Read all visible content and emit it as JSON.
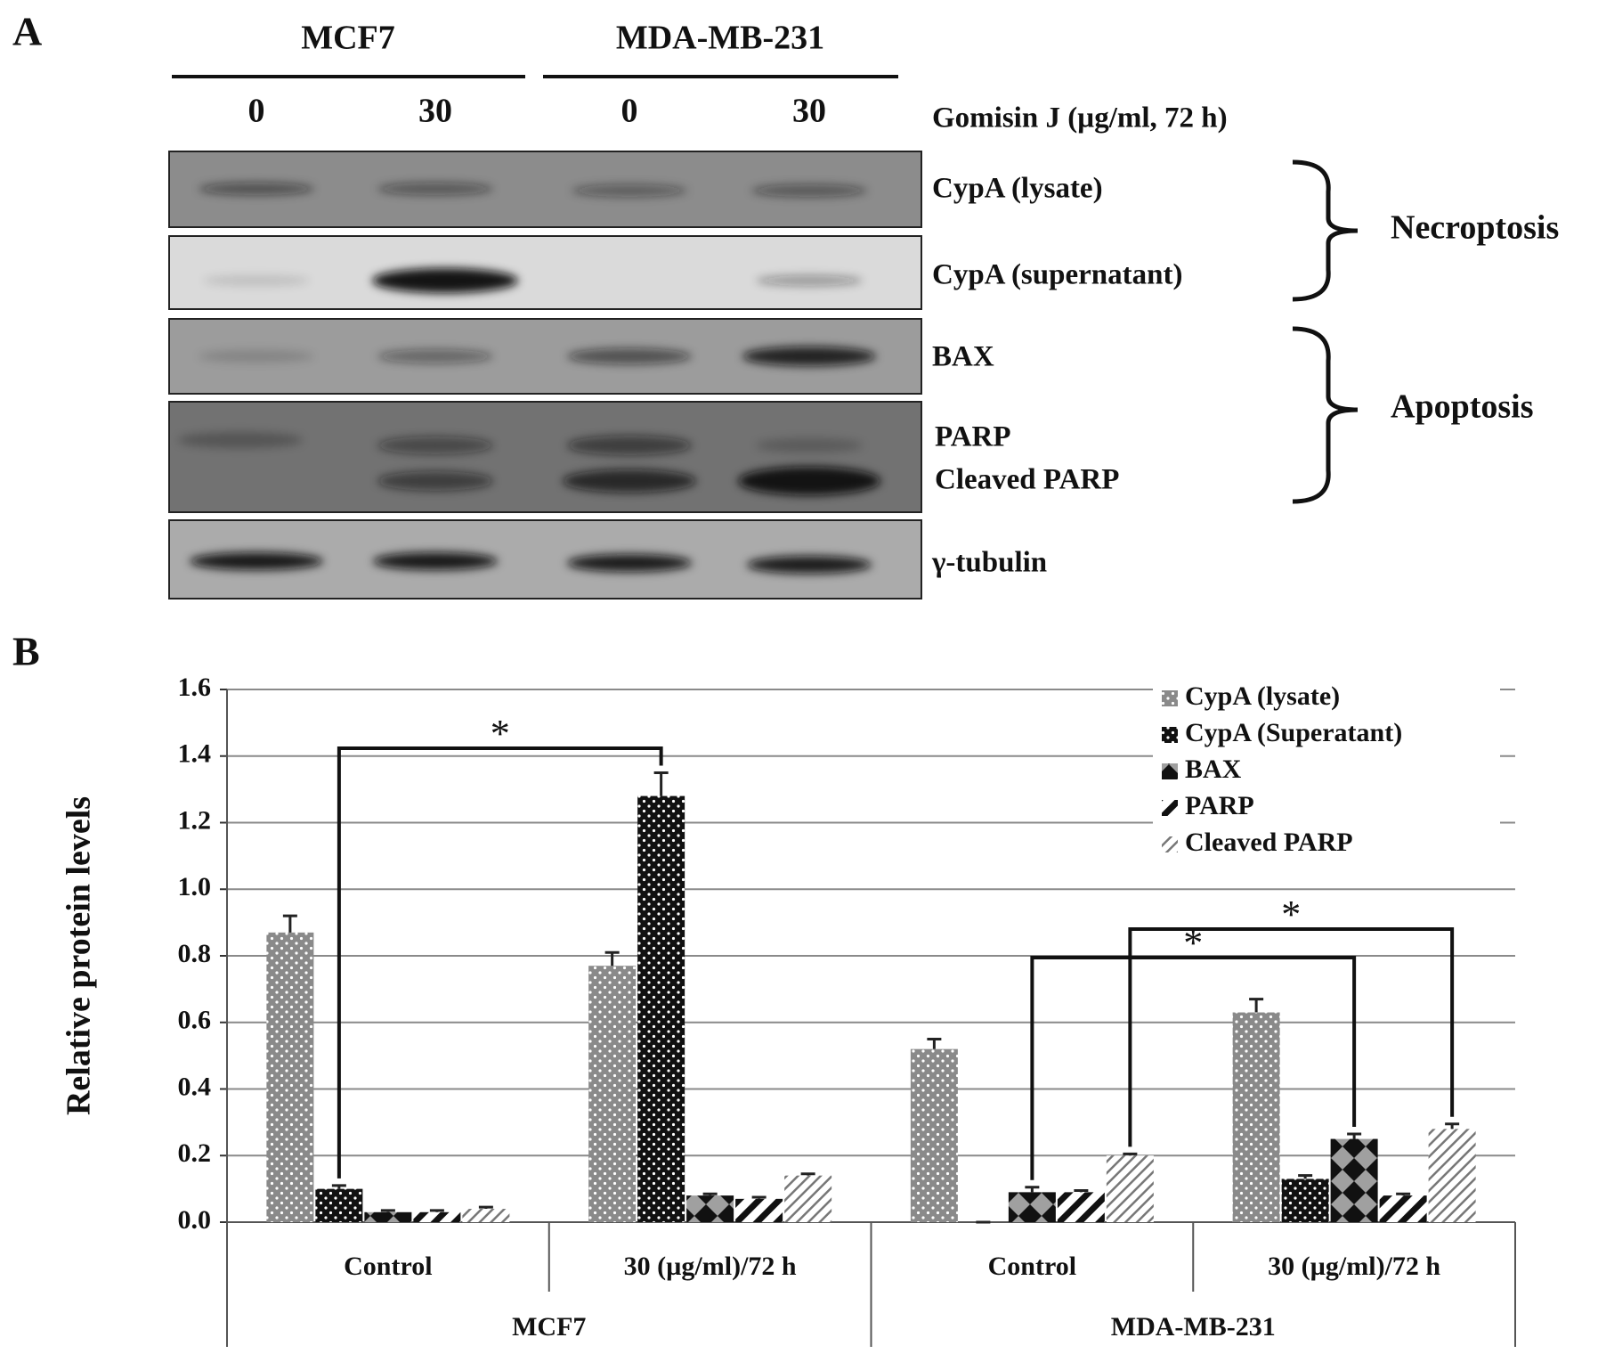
{
  "panel_a": {
    "panel_label": "A",
    "cell_lines": [
      "MCF7",
      "MDA-MB-231"
    ],
    "doses": [
      "0",
      "30",
      "0",
      "30"
    ],
    "treatment": "Gomisin J (µg/ml, 72 h)",
    "blots": [
      "CypA  (lysate)",
      "CypA  (supernatant)",
      "BAX",
      "PARP",
      "Cleaved  PARP",
      "γ-tubulin"
    ],
    "groups": [
      "Necroptosis",
      "Apoptosis"
    ]
  },
  "chart_data": {
    "type": "bar",
    "panel_label": "B",
    "y_label": "Relative protein levels",
    "categories": [
      "Control",
      "30 (µg/ml)/72 h",
      "Control",
      "30 (µg/ml)/72 h"
    ],
    "groups": [
      "MCF7",
      "MDA-MB-231"
    ],
    "series": [
      {
        "name": "CypA (lysate)",
        "color": "#8a8a8a",
        "pattern": "dots",
        "values": [
          0.87,
          0.77,
          0.52,
          0.63
        ],
        "errors": [
          0.05,
          0.04,
          0.03,
          0.04
        ]
      },
      {
        "name": "CypA (Superatant)",
        "color": "#111111",
        "pattern": "dots",
        "values": [
          0.1,
          1.28,
          0,
          0.13
        ],
        "errors": [
          0.01,
          0.07,
          0,
          0.01
        ]
      },
      {
        "name": "BAX",
        "color": "#a0a0a0",
        "pattern": "diamonds",
        "values": [
          0.03,
          0.08,
          0.09,
          0.25
        ],
        "errors": [
          0.005,
          0.005,
          0.015,
          0.015
        ]
      },
      {
        "name": "PARP",
        "color": "#ffffff",
        "pattern": "stripes",
        "values": [
          0.03,
          0.07,
          0.09,
          0.08
        ],
        "errors": [
          0.005,
          0.005,
          0.005,
          0.005
        ]
      },
      {
        "name": "Cleaved PARP",
        "color": "#ffffff",
        "pattern": "hatch",
        "values": [
          0.04,
          0.14,
          0.2,
          0.28
        ],
        "errors": [
          0.005,
          0.005,
          0.005,
          0.015
        ]
      }
    ],
    "ylim": [
      0,
      1.6
    ],
    "yticks": [
      {
        "value": 0,
        "label": "0.0"
      },
      0.2,
      0.4,
      0.6,
      0.8,
      {
        "value": 1,
        "label": "1.0"
      },
      1.2,
      1.4,
      1.6
    ],
    "grid": true,
    "legend": "top-right",
    "annotations": [
      {
        "label": "*",
        "from": [
          0,
          1
        ],
        "to": [
          1,
          1
        ]
      },
      {
        "label": "*",
        "from": [
          2,
          2
        ],
        "to": [
          3,
          2
        ]
      },
      {
        "label": "*",
        "from": [
          2,
          4
        ],
        "to": [
          3,
          4
        ]
      }
    ]
  }
}
